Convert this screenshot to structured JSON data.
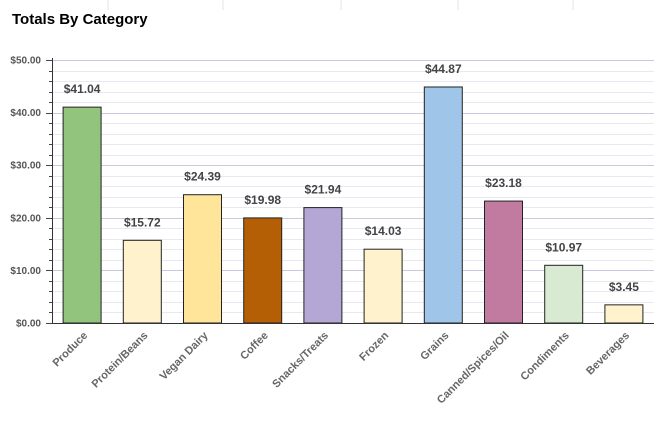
{
  "chart_data": {
    "type": "bar",
    "title": "Totals By Category",
    "xlabel": "",
    "ylabel": "",
    "categories": [
      "Produce",
      "Protein/Beans",
      "Vegan Dairy",
      "Coffee",
      "Snacks/Treats",
      "Frozen",
      "Grains",
      "Canned/Spices/Oil",
      "Condiments",
      "Beverages"
    ],
    "values": [
      41.04,
      15.72,
      24.39,
      19.98,
      21.94,
      14.03,
      44.87,
      23.18,
      10.97,
      3.45
    ],
    "data_labels": [
      "$41.04",
      "$15.72",
      "$24.39",
      "$19.98",
      "$21.94",
      "$14.03",
      "$44.87",
      "$23.18",
      "$10.97",
      "$3.45"
    ],
    "colors": [
      "#93c47d",
      "#fff2cc",
      "#ffe599",
      "#b45f06",
      "#b4a7d6",
      "#fff2cc",
      "#9fc5e8",
      "#c27ba0",
      "#d9ead3",
      "#fff2cc"
    ],
    "ylim": [
      0,
      50
    ],
    "yticks": [
      0,
      10,
      20,
      30,
      40,
      50
    ],
    "ytick_labels": [
      "$0.00",
      "$10.00",
      "$20.00",
      "$30.00",
      "$40.00",
      "$50.00"
    ],
    "grid": true,
    "legend": "none"
  }
}
